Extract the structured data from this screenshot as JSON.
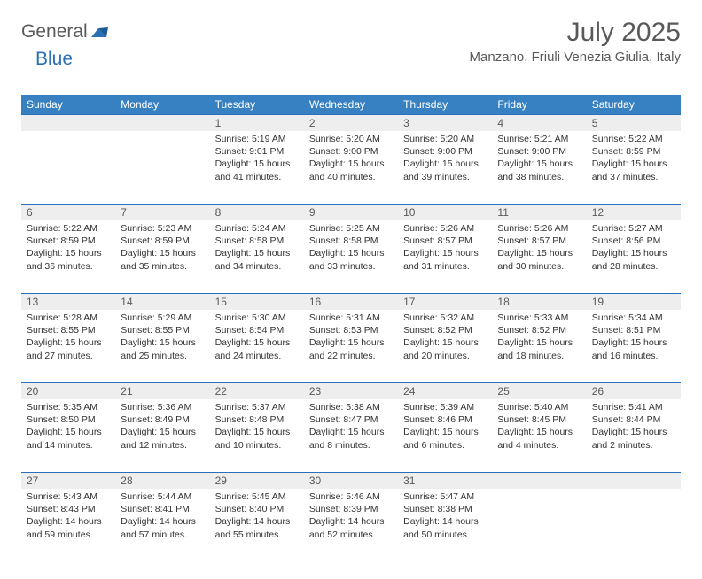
{
  "brand": {
    "part1": "General",
    "part2": "Blue"
  },
  "title": "July 2025",
  "location": "Manzano, Friuli Venezia Giulia, Italy",
  "colors": {
    "header_bg": "#3781c2",
    "header_text": "#ffffff",
    "daynum_bg": "#eeeeee",
    "border": "#2a70b8",
    "text": "#595959"
  },
  "weekday_labels": [
    "Sunday",
    "Monday",
    "Tuesday",
    "Wednesday",
    "Thursday",
    "Friday",
    "Saturday"
  ],
  "grid": {
    "first_weekday_index": 2,
    "days_in_month": 31
  },
  "days": {
    "1": {
      "sunrise": "5:19 AM",
      "sunset": "9:01 PM",
      "daylight": "15 hours and 41 minutes."
    },
    "2": {
      "sunrise": "5:20 AM",
      "sunset": "9:00 PM",
      "daylight": "15 hours and 40 minutes."
    },
    "3": {
      "sunrise": "5:20 AM",
      "sunset": "9:00 PM",
      "daylight": "15 hours and 39 minutes."
    },
    "4": {
      "sunrise": "5:21 AM",
      "sunset": "9:00 PM",
      "daylight": "15 hours and 38 minutes."
    },
    "5": {
      "sunrise": "5:22 AM",
      "sunset": "8:59 PM",
      "daylight": "15 hours and 37 minutes."
    },
    "6": {
      "sunrise": "5:22 AM",
      "sunset": "8:59 PM",
      "daylight": "15 hours and 36 minutes."
    },
    "7": {
      "sunrise": "5:23 AM",
      "sunset": "8:59 PM",
      "daylight": "15 hours and 35 minutes."
    },
    "8": {
      "sunrise": "5:24 AM",
      "sunset": "8:58 PM",
      "daylight": "15 hours and 34 minutes."
    },
    "9": {
      "sunrise": "5:25 AM",
      "sunset": "8:58 PM",
      "daylight": "15 hours and 33 minutes."
    },
    "10": {
      "sunrise": "5:26 AM",
      "sunset": "8:57 PM",
      "daylight": "15 hours and 31 minutes."
    },
    "11": {
      "sunrise": "5:26 AM",
      "sunset": "8:57 PM",
      "daylight": "15 hours and 30 minutes."
    },
    "12": {
      "sunrise": "5:27 AM",
      "sunset": "8:56 PM",
      "daylight": "15 hours and 28 minutes."
    },
    "13": {
      "sunrise": "5:28 AM",
      "sunset": "8:55 PM",
      "daylight": "15 hours and 27 minutes."
    },
    "14": {
      "sunrise": "5:29 AM",
      "sunset": "8:55 PM",
      "daylight": "15 hours and 25 minutes."
    },
    "15": {
      "sunrise": "5:30 AM",
      "sunset": "8:54 PM",
      "daylight": "15 hours and 24 minutes."
    },
    "16": {
      "sunrise": "5:31 AM",
      "sunset": "8:53 PM",
      "daylight": "15 hours and 22 minutes."
    },
    "17": {
      "sunrise": "5:32 AM",
      "sunset": "8:52 PM",
      "daylight": "15 hours and 20 minutes."
    },
    "18": {
      "sunrise": "5:33 AM",
      "sunset": "8:52 PM",
      "daylight": "15 hours and 18 minutes."
    },
    "19": {
      "sunrise": "5:34 AM",
      "sunset": "8:51 PM",
      "daylight": "15 hours and 16 minutes."
    },
    "20": {
      "sunrise": "5:35 AM",
      "sunset": "8:50 PM",
      "daylight": "15 hours and 14 minutes."
    },
    "21": {
      "sunrise": "5:36 AM",
      "sunset": "8:49 PM",
      "daylight": "15 hours and 12 minutes."
    },
    "22": {
      "sunrise": "5:37 AM",
      "sunset": "8:48 PM",
      "daylight": "15 hours and 10 minutes."
    },
    "23": {
      "sunrise": "5:38 AM",
      "sunset": "8:47 PM",
      "daylight": "15 hours and 8 minutes."
    },
    "24": {
      "sunrise": "5:39 AM",
      "sunset": "8:46 PM",
      "daylight": "15 hours and 6 minutes."
    },
    "25": {
      "sunrise": "5:40 AM",
      "sunset": "8:45 PM",
      "daylight": "15 hours and 4 minutes."
    },
    "26": {
      "sunrise": "5:41 AM",
      "sunset": "8:44 PM",
      "daylight": "15 hours and 2 minutes."
    },
    "27": {
      "sunrise": "5:43 AM",
      "sunset": "8:43 PM",
      "daylight": "14 hours and 59 minutes."
    },
    "28": {
      "sunrise": "5:44 AM",
      "sunset": "8:41 PM",
      "daylight": "14 hours and 57 minutes."
    },
    "29": {
      "sunrise": "5:45 AM",
      "sunset": "8:40 PM",
      "daylight": "14 hours and 55 minutes."
    },
    "30": {
      "sunrise": "5:46 AM",
      "sunset": "8:39 PM",
      "daylight": "14 hours and 52 minutes."
    },
    "31": {
      "sunrise": "5:47 AM",
      "sunset": "8:38 PM",
      "daylight": "14 hours and 50 minutes."
    }
  },
  "labels": {
    "sunrise_prefix": "Sunrise: ",
    "sunset_prefix": "Sunset: ",
    "daylight_prefix": "Daylight: "
  }
}
